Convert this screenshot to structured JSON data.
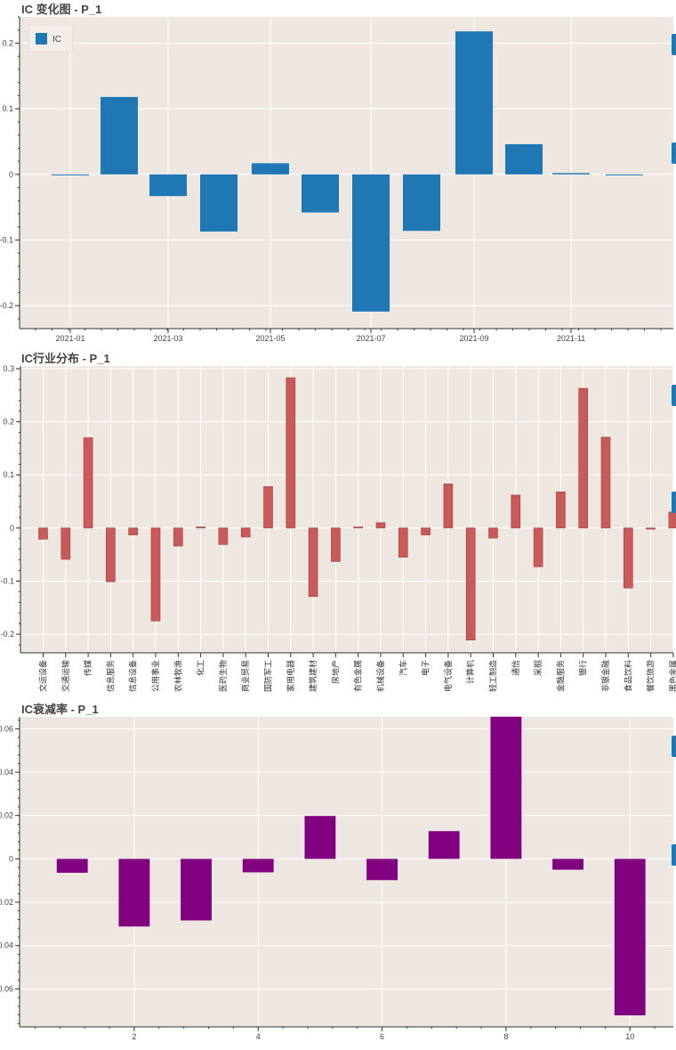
{
  "colors": {
    "plot_bg": "#ede6e1",
    "grid": "#ffffff",
    "axis": "#333333",
    "bar_blue": "#1f77b4",
    "bar_red": "#c85a5a",
    "bar_red_edge": "#a33a3a",
    "bar_purple": "#800080",
    "toolbar": "#1f77b4"
  },
  "chart_data": [
    {
      "type": "bar",
      "title": "IC 变化图 - P_1",
      "legend": {
        "label": "IC",
        "placement": "top-left"
      },
      "x_ticks": [
        "2021-01",
        "2021-03",
        "2021-05",
        "2021-07",
        "2021-09",
        "2021-11"
      ],
      "categories": [
        "2021-01",
        "2021-02",
        "2021-03",
        "2021-04",
        "2021-05",
        "2021-06",
        "2021-07",
        "2021-08",
        "2021-09",
        "2021-10",
        "2021-11",
        "2021-12"
      ],
      "values": [
        -0.001,
        0.118,
        -0.033,
        -0.087,
        0.017,
        -0.058,
        -0.209,
        -0.086,
        0.218,
        0.046,
        0.002,
        -0.001
      ],
      "ylim": [
        -0.235,
        0.24
      ],
      "y_ticks": [
        -0.2,
        -0.1,
        0,
        0.1,
        0.2
      ],
      "y_tick_labels": [
        "-0.2",
        "-0.1",
        "0",
        "0.1",
        "0.2"
      ]
    },
    {
      "type": "bar",
      "title": "IC行业分布 - P_1",
      "categories": [
        "交运设备",
        "交通运输",
        "传媒",
        "信息服务",
        "信息设备",
        "公用事业",
        "农林牧渔",
        "化工",
        "医药生物",
        "商业贸易",
        "国防军工",
        "家用电器",
        "建筑建材",
        "房地产",
        "有色金属",
        "机械设备",
        "汽车",
        "电子",
        "电气设备",
        "计算机",
        "轻工制造",
        "通信",
        "采掘",
        "金融服务",
        "银行",
        "非银金融",
        "食品饮料",
        "餐饮旅游",
        "黑色金属"
      ],
      "values": [
        -0.021,
        -0.059,
        0.17,
        -0.101,
        -0.013,
        -0.175,
        -0.034,
        0.002,
        -0.031,
        -0.017,
        0.078,
        0.283,
        -0.129,
        -0.063,
        0.002,
        0.01,
        -0.055,
        -0.013,
        0.083,
        -0.211,
        -0.019,
        0.062,
        -0.073,
        0.068,
        0.263,
        0.171,
        -0.113,
        -0.002,
        0.03
      ],
      "ylim": [
        -0.235,
        0.305
      ],
      "y_ticks": [
        -0.2,
        -0.1,
        0,
        0.1,
        0.2,
        0.3
      ],
      "y_tick_labels": [
        "-0.2",
        "-0.1",
        "0",
        "0.1",
        "0.2",
        "0.3"
      ]
    },
    {
      "type": "bar",
      "title": "IC衰减率 - P_1",
      "categories": [
        1,
        2,
        3,
        4,
        5,
        6,
        7,
        8,
        9,
        10
      ],
      "values": [
        -0.0064,
        -0.0312,
        -0.0284,
        -0.0062,
        0.0198,
        -0.0098,
        0.0128,
        0.0656,
        -0.005,
        -0.0722
      ],
      "xlim": [
        0.15,
        10.7
      ],
      "x_ticks": [
        2,
        4,
        6,
        8,
        10
      ],
      "x_tick_labels": [
        "2",
        "4",
        "6",
        "8",
        "10"
      ],
      "ylim": [
        -0.0775,
        0.0655
      ],
      "y_ticks": [
        -0.06,
        -0.04,
        -0.02,
        0,
        0.02,
        0.04,
        0.06
      ],
      "y_tick_labels": [
        "-0.06",
        "-0.04",
        "-0.02",
        "0",
        "0.02",
        "0.04",
        "0.06"
      ]
    }
  ]
}
